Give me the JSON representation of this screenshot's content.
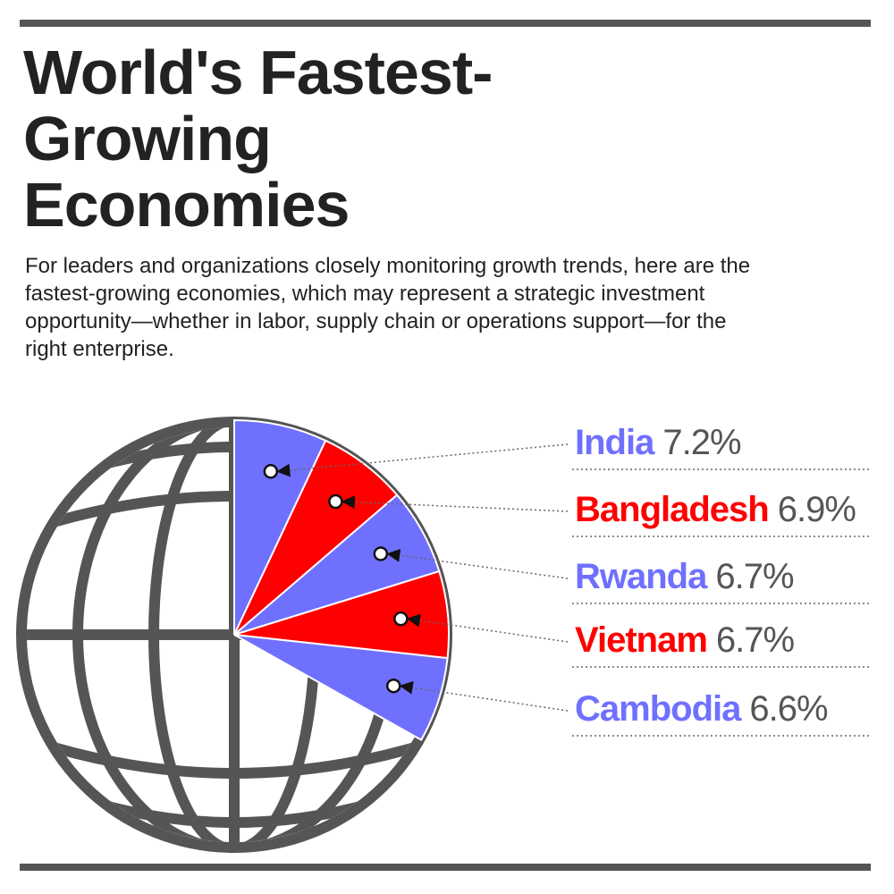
{
  "chart_data": {
    "type": "pie",
    "title": "World's Fastest-Growing Economies",
    "subtitle": "For leaders and organizations closely monitoring growth trends, here are the fastest-growing economies, which may represent a strategic investment opportunity—whether in labor, supply chain or operations support—for the right enterprise.",
    "categories": [
      "India",
      "Bangladesh",
      "Rwanda",
      "Vietnam",
      "Cambodia"
    ],
    "values": [
      7.2,
      6.9,
      6.7,
      6.7,
      6.6
    ],
    "value_labels": [
      "7.2%",
      "6.9%",
      "6.7%",
      "6.7%",
      "6.6%"
    ],
    "colors": [
      "#7070ff",
      "#ff0000",
      "#7070ff",
      "#ff0000",
      "#7070ff"
    ]
  }
}
